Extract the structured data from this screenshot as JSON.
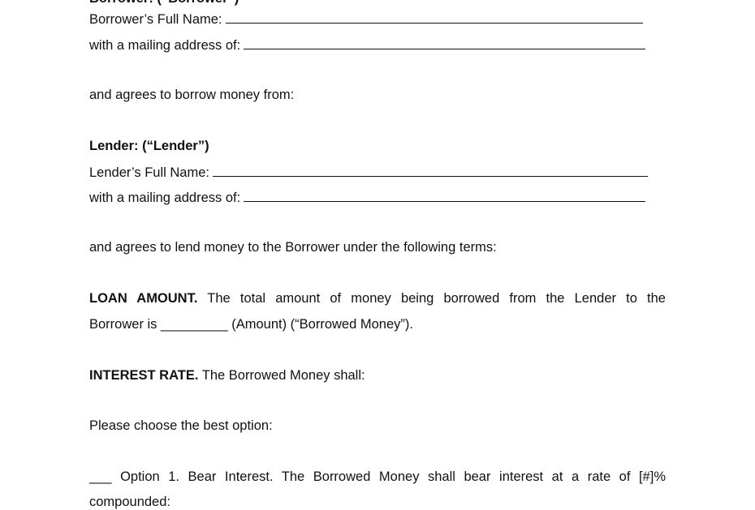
{
  "borrower": {
    "heading": "Borrower: (“Borrower”)",
    "name_label": "Borrower’s Full Name:",
    "address_label": "with a mailing address of:"
  },
  "borrow_statement": "and agrees to borrow money from:",
  "lender": {
    "heading": "Lender: (“Lender”)",
    "name_label": "Lender’s Full Name:",
    "address_label": "with a mailing address of:"
  },
  "lend_statement": "and agrees to lend money to the Borrower under the following terms:",
  "loan_amount": {
    "heading": "LOAN AMOUNT.",
    "line1": "The total amount of money being borrowed from the Lender to the",
    "line2_prefix": "Borrower is",
    "blank": "_________",
    "line2_suffix": "(Amount) (“Borrowed Money”)."
  },
  "interest_rate": {
    "heading": "INTEREST RATE.",
    "text": "The Borrowed Money shall:"
  },
  "choose_prompt": "Please choose the best option:",
  "option1": {
    "blank": "___",
    "line1": "Option 1. Bear Interest. The Borrowed Money shall bear interest at a rate of [#]%",
    "line2": "compounded:"
  }
}
